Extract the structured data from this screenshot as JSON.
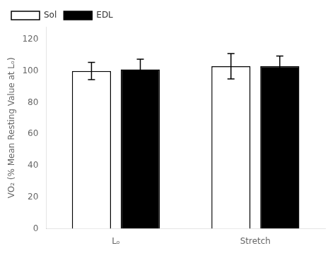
{
  "chart_data": {
    "type": "bar",
    "categories": [
      "Lₒ",
      "Stretch"
    ],
    "series": [
      {
        "name": "Sol",
        "color": "white",
        "values": [
          100.0,
          103.0
        ],
        "errors": [
          5.5,
          8.0
        ]
      },
      {
        "name": "EDL",
        "color": "black",
        "values": [
          101.0,
          103.0
        ],
        "errors": [
          6.5,
          6.5
        ]
      }
    ],
    "ylabel": "VO₂ (% Mean Resting Value at Lₒ)",
    "ylim": [
      0,
      128
    ],
    "yticks": [
      0,
      20,
      40,
      60,
      80,
      100,
      120
    ],
    "grid": false,
    "legend": "upper left"
  }
}
